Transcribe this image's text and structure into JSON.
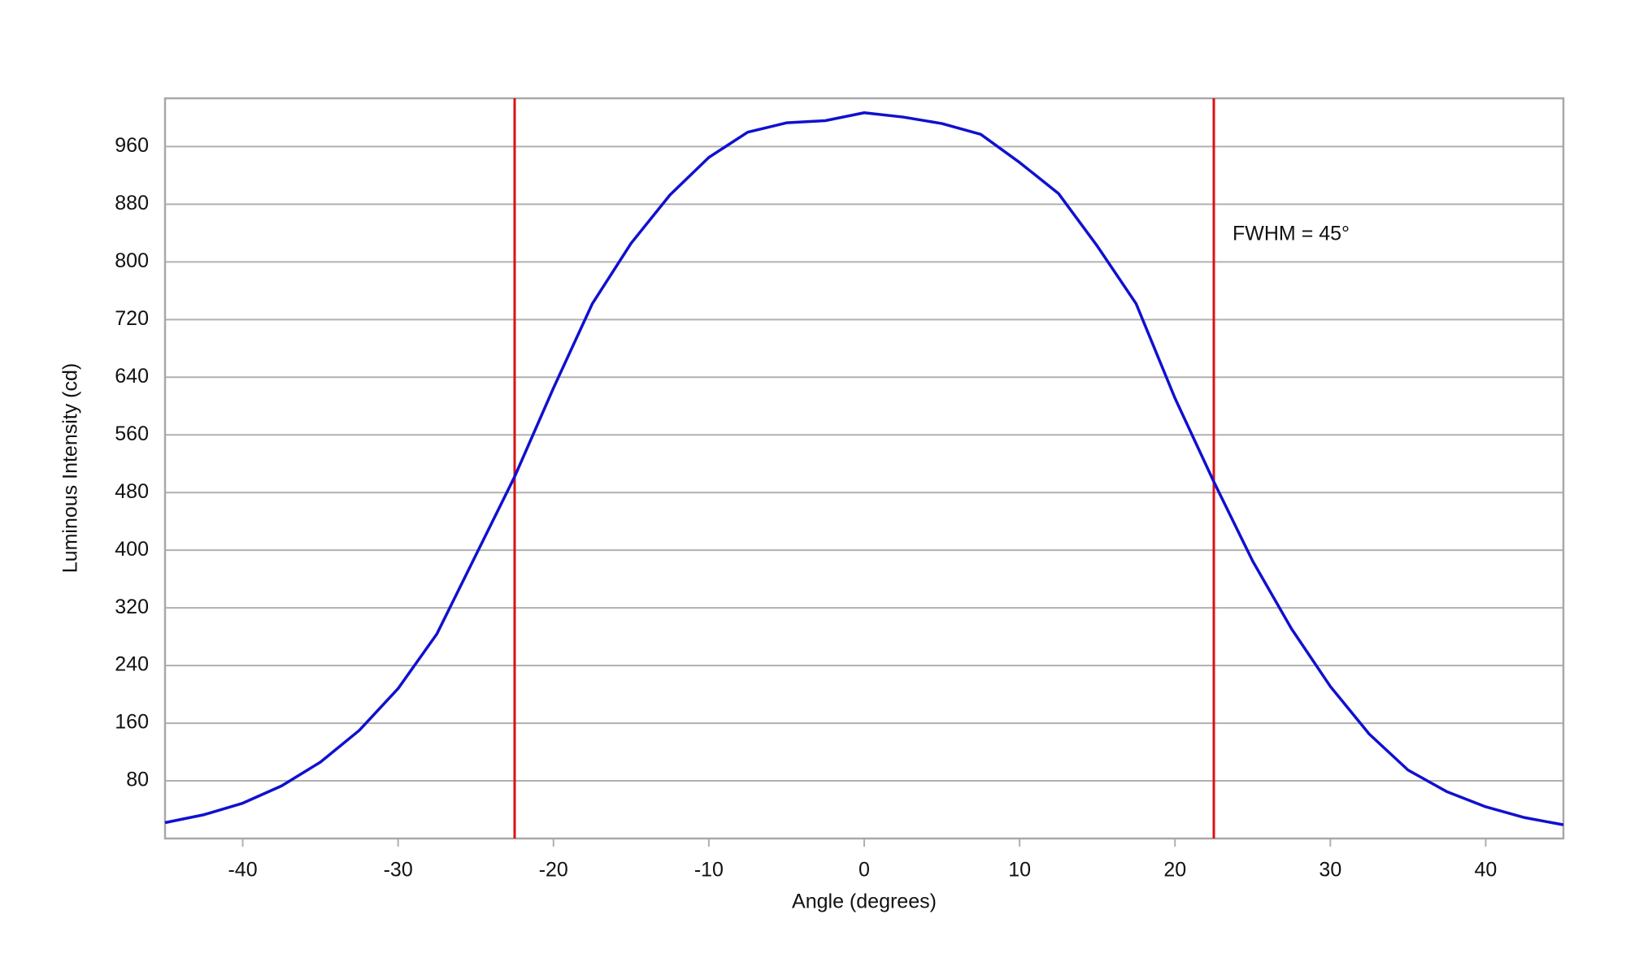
{
  "chart_data": {
    "type": "line",
    "xlabel": "Angle (degrees)",
    "ylabel": "Luminous Intensity (cd)",
    "annotation": "FWHM = 45°",
    "x": [
      -45,
      -42.5,
      -40,
      -37.5,
      -35,
      -32.5,
      -30,
      -27.5,
      -25,
      -22.5,
      -20,
      -17.5,
      -15,
      -12.5,
      -10,
      -7.5,
      -5,
      -2.5,
      0,
      2.5,
      5,
      7.5,
      10,
      12.5,
      15,
      17.5,
      20,
      22.5,
      25,
      27.5,
      30,
      32.5,
      35,
      37.5,
      40,
      42.5,
      45
    ],
    "series": [
      {
        "color": "#1010d0",
        "values": [
          22,
          33,
          49,
          73,
          106,
          150,
          208,
          284,
          393,
          502,
          625,
          742,
          826,
          893,
          945,
          980,
          993,
          996,
          1007,
          1001,
          992,
          977,
          938,
          895,
          822,
          742,
          611,
          495,
          385,
          291,
          211,
          145,
          95,
          65,
          44,
          29,
          19
        ]
      }
    ],
    "vlines": [
      -22.5,
      22.5
    ],
    "vline_color": "#dd1111",
    "xlim": [
      -45,
      45
    ],
    "xticks": [
      -40,
      -30,
      -20,
      -10,
      0,
      10,
      20,
      30,
      40
    ],
    "ylim": [
      0,
      1027
    ],
    "yticks": [
      80,
      160,
      240,
      320,
      400,
      480,
      560,
      640,
      720,
      800,
      880,
      960
    ],
    "grid": true
  }
}
